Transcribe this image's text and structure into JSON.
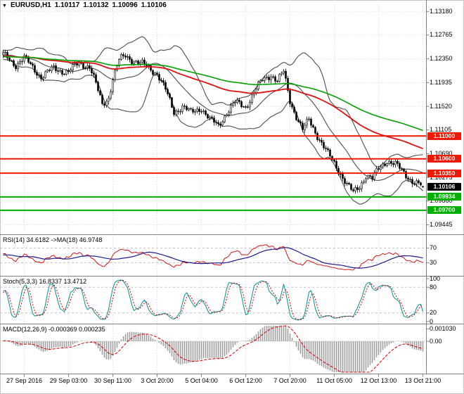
{
  "colors": {
    "background": "#ffffff",
    "grid": "#dcdcdc",
    "panel_border": "#808080",
    "candle_up": "#ffffff",
    "candle_down": "#000000",
    "candle_outline": "#000000",
    "bollinger": "#4d4d4d",
    "ma_red": "#e01010",
    "ma_green": "#00a000",
    "line_red": "#f01800",
    "line_green": "#00b000",
    "badge_black": "#000000",
    "rsi_line": "#d00000",
    "rsi_ma": "#1c1c8c",
    "stoch_k": "#009090",
    "stoch_d": "#d00000",
    "macd_hist": "#9e9e9e",
    "macd_signal": "#d00000",
    "level_dash": "#c0c0c0"
  },
  "title_bar": {
    "collapse_icon": "▼",
    "symbol": "EURUSD,H1",
    "open": "1.10117",
    "high": "1.10132",
    "low": "1.10096",
    "close": "1.10106"
  },
  "chart_data": [
    {
      "type": "candlestick",
      "title": "EURUSD,H1",
      "symbol": "EURUSD",
      "timeframe": "H1",
      "bars": 200,
      "y_range": [
        1.0928,
        1.1338
      ],
      "y_ticks": [
        {
          "label": "1.13180",
          "price": 1.1318
        },
        {
          "label": "1.12765",
          "price": 1.12765
        },
        {
          "label": "1.12350",
          "price": 1.1235
        },
        {
          "label": "1.11935",
          "price": 1.11935
        },
        {
          "label": "1.11520",
          "price": 1.1152
        },
        {
          "label": "1.11105",
          "price": 1.11105
        },
        {
          "label": "1.10690",
          "price": 1.1069
        },
        {
          "label": "1.10275",
          "price": 1.10275
        },
        {
          "label": "1.09860",
          "price": 1.0986
        },
        {
          "label": "1.09445",
          "price": 1.09445
        }
      ],
      "x_labels": [
        {
          "label": "27 Sep 2016",
          "bar": 10
        },
        {
          "label": "29 Sep 03:00",
          "bar": 31
        },
        {
          "label": "30 Sep 11:00",
          "bar": 52
        },
        {
          "label": "3 Oct 20:00",
          "bar": 73
        },
        {
          "label": "5 Oct 04:00",
          "bar": 94
        },
        {
          "label": "6 Oct 12:00",
          "bar": 115
        },
        {
          "label": "7 Oct 20:00",
          "bar": 136
        },
        {
          "label": "11 Oct 05:00",
          "bar": 157
        },
        {
          "label": "12 Oct 13:00",
          "bar": 178
        },
        {
          "label": "13 Oct 21:00",
          "bar": 199
        }
      ],
      "ohlc_last": {
        "open": 1.10117,
        "high": 1.10132,
        "low": 1.10096,
        "close": 1.10106
      },
      "close_path": [
        [
          0,
          1.1242
        ],
        [
          6,
          1.1225
        ],
        [
          10,
          1.1236
        ],
        [
          14,
          1.122
        ],
        [
          18,
          1.1204
        ],
        [
          24,
          1.1218
        ],
        [
          31,
          1.1212
        ],
        [
          36,
          1.1228
        ],
        [
          41,
          1.1222
        ],
        [
          44,
          1.119
        ],
        [
          47,
          1.1155
        ],
        [
          50,
          1.1168
        ],
        [
          52,
          1.12
        ],
        [
          55,
          1.1232
        ],
        [
          58,
          1.1241
        ],
        [
          63,
          1.123
        ],
        [
          68,
          1.1222
        ],
        [
          73,
          1.121
        ],
        [
          77,
          1.118
        ],
        [
          81,
          1.1142
        ],
        [
          85,
          1.1152
        ],
        [
          89,
          1.114
        ],
        [
          94,
          1.115
        ],
        [
          98,
          1.1128
        ],
        [
          102,
          1.1118
        ],
        [
          106,
          1.1142
        ],
        [
          110,
          1.1158
        ],
        [
          115,
          1.1152
        ],
        [
          119,
          1.1176
        ],
        [
          123,
          1.1198
        ],
        [
          127,
          1.1208
        ],
        [
          130,
          1.1196
        ],
        [
          133,
          1.1212
        ],
        [
          136,
          1.1162
        ],
        [
          139,
          1.1135
        ],
        [
          142,
          1.111
        ],
        [
          145,
          1.1128
        ],
        [
          148,
          1.1108
        ],
        [
          151,
          1.1088
        ],
        [
          154,
          1.1068
        ],
        [
          157,
          1.1052
        ],
        [
          160,
          1.1035
        ],
        [
          163,
          1.1015
        ],
        [
          166,
          1.1
        ],
        [
          169,
          1.1012
        ],
        [
          172,
          1.1032
        ],
        [
          175,
          1.1025
        ],
        [
          178,
          1.1042
        ],
        [
          182,
          1.1058
        ],
        [
          186,
          1.105
        ],
        [
          190,
          1.1035
        ],
        [
          194,
          1.1022
        ],
        [
          199,
          1.10106
        ]
      ],
      "noise": {
        "w1": 0.00035,
        "w2": 0.00045,
        "r1": 0.00028,
        "r2": 0.00055
      },
      "overlays": [
        {
          "name": "bollinger-bands",
          "period": 20,
          "deviation": 2,
          "color_key": "bollinger"
        },
        {
          "name": "ma-red",
          "period": 90,
          "color_key": "ma_red",
          "width": 1.8
        },
        {
          "name": "ma-green",
          "period": 150,
          "color_key": "ma_green",
          "width": 1.6
        }
      ],
      "horizontal_lines": [
        {
          "price": 1.11,
          "color_key": "line_red",
          "width": 2
        },
        {
          "price": 1.106,
          "color_key": "line_red",
          "width": 2
        },
        {
          "price": 1.1035,
          "color_key": "line_red",
          "width": 2
        },
        {
          "price": 1.09934,
          "color_key": "line_green",
          "width": 2
        },
        {
          "price": 1.097,
          "color_key": "line_green",
          "width": 2
        }
      ],
      "price_badges": [
        {
          "text": "1.11000",
          "price": 1.11,
          "color_key": "line_red"
        },
        {
          "text": "1.10600",
          "price": 1.106,
          "color_key": "line_red"
        },
        {
          "text": "1.10350",
          "price": 1.1035,
          "color_key": "line_red"
        },
        {
          "text": "1.10106",
          "price": 1.10106,
          "color_key": "badge_black"
        },
        {
          "text": "1.09934",
          "price": 1.09934,
          "color_key": "line_green"
        },
        {
          "text": "1.09700",
          "price": 1.097,
          "color_key": "line_green"
        }
      ]
    },
    {
      "type": "line",
      "name": "RSI",
      "label": "RSI(14) 34.6182 ->MA(18) 46.9748",
      "period": 14,
      "ma_period": 18,
      "last_value": 34.6182,
      "ma_last_value": 46.9748,
      "range": [
        0,
        100
      ],
      "levels": [
        {
          "label": "70",
          "value": 70
        },
        {
          "label": "30",
          "value": 30
        }
      ]
    },
    {
      "type": "line",
      "name": "Stochastic",
      "label": "Stoch(5,3,3) 16.8337 13.4712",
      "k_last": 16.8337,
      "d_last": 13.4712,
      "range": [
        0,
        100
      ],
      "levels": [
        {
          "label": "80",
          "value": 80
        },
        {
          "label": "20",
          "value": 20
        }
      ],
      "y_ticks": [
        {
          "label": "100",
          "value": 100
        },
        {
          "label": "80",
          "value": 80
        },
        {
          "label": "20",
          "value": 20
        },
        {
          "label": "0",
          "value": 0
        }
      ]
    },
    {
      "type": "bar",
      "name": "MACD",
      "label": "MACD(12,26,9) -0.000369 0.000235",
      "fast": 12,
      "slow": 26,
      "signal": 9,
      "macd_last": -0.000369,
      "signal_last": 0.000235,
      "range": [
        -0.0026,
        0.0013
      ],
      "y_ticks": [
        {
          "label": "0.001030",
          "value": 0.00103
        },
        {
          "label": "0.00",
          "value": 0
        }
      ]
    }
  ]
}
